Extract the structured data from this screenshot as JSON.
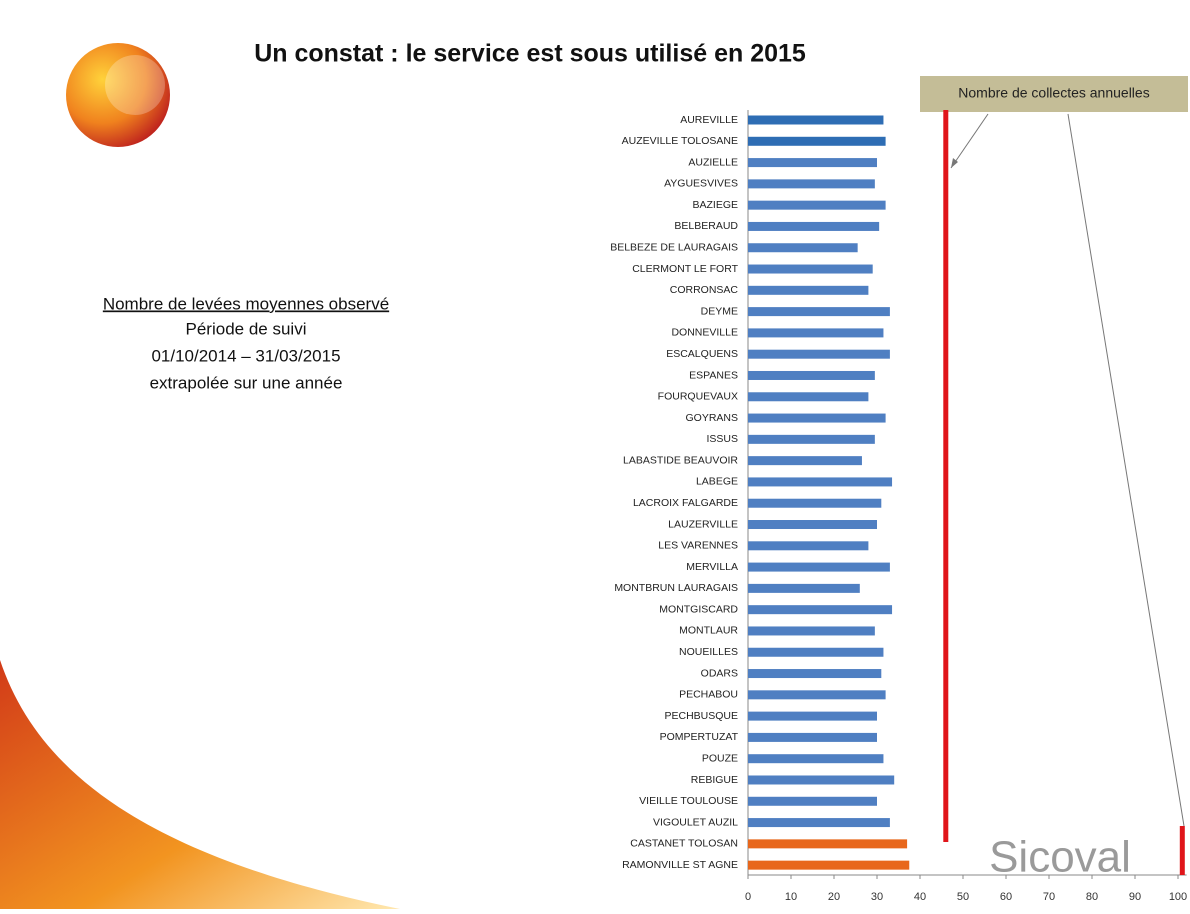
{
  "title": "Un constat : le service est sous utilisé en 2015",
  "side_text": {
    "heading": "Nombre de levées moyennes observé",
    "lines": [
      "Période de suivi",
      "01/10/2014 – 31/03/2015",
      "extrapolée sur une année"
    ]
  },
  "logo": "Sicoval",
  "chart_data": {
    "type": "bar",
    "orientation": "horizontal",
    "categories": [
      "AUREVILLE",
      "AUZEVILLE TOLOSANE",
      "AUZIELLE",
      "AYGUESVIVES",
      "BAZIEGE",
      "BELBERAUD",
      "BELBEZE DE LAURAGAIS",
      "CLERMONT LE FORT",
      "CORRONSAC",
      "DEYME",
      "DONNEVILLE",
      "ESCALQUENS",
      "ESPANES",
      "FOURQUEVAUX",
      "GOYRANS",
      "ISSUS",
      "LABASTIDE BEAUVOIR",
      "LABEGE",
      "LACROIX FALGARDE",
      "LAUZERVILLE",
      "LES VARENNES",
      "MERVILLA",
      "MONTBRUN LAURAGAIS",
      "MONTGISCARD",
      "MONTLAUR",
      "NOUEILLES",
      "ODARS",
      "PECHABOU",
      "PECHBUSQUE",
      "POMPERTUZAT",
      "POUZE",
      "REBIGUE",
      "VIEILLE TOULOUSE",
      "VIGOULET AUZIL",
      "CASTANET TOLOSAN",
      "RAMONVILLE ST AGNE"
    ],
    "values": [
      31.5,
      32,
      30,
      29.5,
      32,
      30.5,
      25.5,
      29,
      28,
      33,
      31.5,
      33,
      29.5,
      28,
      32,
      29.5,
      26.5,
      33.5,
      31,
      30,
      28,
      33,
      26,
      33.5,
      29.5,
      31.5,
      31,
      32,
      30,
      30,
      31.5,
      34,
      30,
      33,
      37,
      37.5
    ],
    "colors": [
      "#2e6db4",
      "#2e6db4",
      "#4f7fc2",
      "#4f7fc2",
      "#4f7fc2",
      "#4f7fc2",
      "#4f7fc2",
      "#4f7fc2",
      "#4f7fc2",
      "#4f7fc2",
      "#4f7fc2",
      "#4f7fc2",
      "#4f7fc2",
      "#4f7fc2",
      "#4f7fc2",
      "#4f7fc2",
      "#4f7fc2",
      "#4f7fc2",
      "#4f7fc2",
      "#4f7fc2",
      "#4f7fc2",
      "#4f7fc2",
      "#4f7fc2",
      "#4f7fc2",
      "#4f7fc2",
      "#4f7fc2",
      "#4f7fc2",
      "#4f7fc2",
      "#4f7fc2",
      "#4f7fc2",
      "#4f7fc2",
      "#4f7fc2",
      "#4f7fc2",
      "#4f7fc2",
      "#e8671c",
      "#e8671c"
    ],
    "xlim": [
      0,
      102
    ],
    "xticks": [
      0,
      10,
      20,
      30,
      40,
      50,
      60,
      70,
      80,
      90,
      100
    ],
    "reference_lines": [
      46,
      101
    ],
    "reference_color": "#e0151a",
    "annotation": "Nombre de collectes annuelles"
  }
}
